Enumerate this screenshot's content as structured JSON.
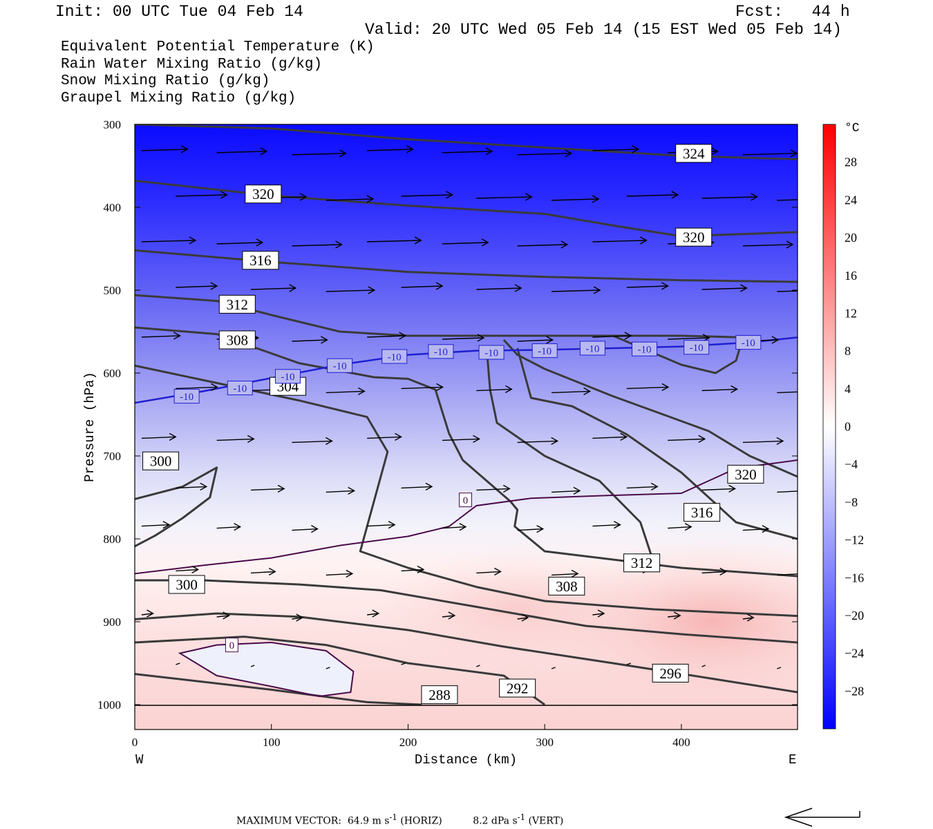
{
  "header": {
    "init": "Init: 00 UTC Tue 04 Feb 14",
    "fcst_label": "Fcst:",
    "fcst_value": "44 h",
    "valid": "Valid: 20 UTC Wed 05 Feb 14 (15 EST Wed 05 Feb 14)"
  },
  "legend": [
    {
      "text": "Equivalent Potential Temperature (K)",
      "color": "#555555"
    },
    {
      "text": "Rain Water Mixing Ratio (g/kg)",
      "color": "#006400"
    },
    {
      "text": "Snow Mixing Ratio (g/kg)",
      "color": "#f4a460"
    },
    {
      "text": "Graupel Mixing Ratio (g/kg)",
      "color": "#ee82ee"
    }
  ],
  "footer": {
    "label": "MAXIMUM VECTOR:",
    "horiz": "64.9 m s",
    "horiz_exp": "-1",
    "horiz_tag": "(HORIZ)",
    "vert": "8.2 dPa s",
    "vert_exp": "-1",
    "vert_tag": "(VERT)"
  },
  "chart_data": {
    "type": "heatmap",
    "xlabel": "Distance (km)",
    "ylabel": "Pressure (hPa)",
    "xlim": [
      0,
      485
    ],
    "ylim": [
      1030,
      300
    ],
    "y_log_scale": false,
    "x_ticks": [
      0,
      100,
      200,
      300,
      400
    ],
    "y_ticks": [
      300,
      400,
      500,
      600,
      700,
      800,
      900,
      1000
    ],
    "x_endpoints": [
      "W",
      "E"
    ],
    "colorbar": {
      "unit": "°C",
      "labels": [
        28,
        24,
        20,
        16,
        12,
        8,
        4,
        0,
        -4,
        -8,
        -12,
        -16,
        -20,
        -24,
        -28
      ],
      "range": [
        -32,
        32
      ]
    },
    "temperature_isotherms": [
      {
        "value": -10,
        "color": "#1f1fd0",
        "points": [
          [
            0,
            636
          ],
          [
            50,
            622
          ],
          [
            100,
            606
          ],
          [
            150,
            590
          ],
          [
            200,
            578
          ],
          [
            250,
            573
          ],
          [
            300,
            572
          ],
          [
            350,
            570
          ],
          [
            400,
            568
          ],
          [
            450,
            563
          ],
          [
            485,
            557
          ]
        ],
        "labels": "-10"
      },
      {
        "value": 0,
        "color": "#4a0a4a",
        "points": [
          [
            0,
            842
          ],
          [
            50,
            832
          ],
          [
            100,
            823
          ],
          [
            150,
            808
          ],
          [
            200,
            797
          ],
          [
            230,
            785
          ],
          [
            250,
            760
          ],
          [
            290,
            751
          ],
          [
            340,
            748
          ],
          [
            400,
            745
          ],
          [
            440,
            715
          ],
          [
            485,
            705
          ]
        ],
        "labels": "0"
      },
      {
        "value": 0,
        "color": "#4a0a4a",
        "closed": true,
        "points": [
          [
            33,
            938
          ],
          [
            60,
            928
          ],
          [
            100,
            925
          ],
          [
            140,
            935
          ],
          [
            160,
            960
          ],
          [
            158,
            985
          ],
          [
            135,
            990
          ],
          [
            100,
            978
          ],
          [
            60,
            965
          ],
          [
            33,
            938
          ]
        ],
        "labels": "0"
      }
    ],
    "theta_e_contours": [
      {
        "value": 324,
        "points": [
          [
            0,
            300
          ],
          [
            100,
            305
          ],
          [
            200,
            318
          ],
          [
            300,
            328
          ],
          [
            400,
            338
          ],
          [
            485,
            342
          ]
        ]
      },
      {
        "value": 320,
        "points": [
          [
            0,
            368
          ],
          [
            100,
            386
          ],
          [
            200,
            398
          ],
          [
            300,
            408
          ],
          [
            350,
            422
          ],
          [
            400,
            435
          ],
          [
            485,
            430
          ]
        ]
      },
      {
        "value": 316,
        "points": [
          [
            0,
            452
          ],
          [
            100,
            466
          ],
          [
            200,
            478
          ],
          [
            300,
            484
          ],
          [
            400,
            488
          ],
          [
            485,
            490
          ]
        ]
      },
      {
        "value": 312,
        "points": [
          [
            0,
            506
          ],
          [
            60,
            513
          ],
          [
            100,
            530
          ],
          [
            150,
            550
          ],
          [
            200,
            555
          ],
          [
            300,
            555
          ],
          [
            400,
            555
          ],
          [
            445,
            557
          ],
          [
            440,
            585
          ],
          [
            425,
            600
          ],
          [
            400,
            590
          ],
          [
            350,
            555
          ],
          [
            340,
            555
          ]
        ]
      },
      {
        "value": 308,
        "points": [
          [
            0,
            545
          ],
          [
            60,
            553
          ],
          [
            120,
            588
          ],
          [
            175,
            605
          ],
          [
            200,
            607
          ],
          [
            220,
            620
          ],
          [
            230,
            673
          ],
          [
            240,
            705
          ],
          [
            275,
            755
          ],
          [
            280,
            765
          ],
          [
            278,
            785
          ],
          [
            300,
            815
          ],
          [
            350,
            825
          ],
          [
            400,
            835
          ],
          [
            485,
            845
          ]
        ]
      },
      {
        "value": 304,
        "points": [
          [
            0,
            591
          ],
          [
            60,
            612
          ],
          [
            120,
            633
          ],
          [
            170,
            653
          ],
          [
            185,
            695
          ],
          [
            165,
            815
          ],
          [
            200,
            835
          ],
          [
            250,
            858
          ],
          [
            300,
            875
          ],
          [
            380,
            885
          ],
          [
            485,
            893
          ]
        ]
      },
      {
        "value": 300,
        "points": [
          [
            0,
            752
          ],
          [
            35,
            737
          ],
          [
            60,
            714
          ],
          [
            55,
            750
          ],
          [
            35,
            775
          ],
          [
            15,
            796
          ],
          [
            0,
            809
          ]
        ]
      },
      {
        "value": 300,
        "points": [
          [
            0,
            850
          ],
          [
            50,
            850
          ],
          [
            120,
            855
          ],
          [
            180,
            862
          ],
          [
            250,
            882
          ],
          [
            330,
            905
          ],
          [
            400,
            915
          ],
          [
            485,
            925
          ]
        ]
      },
      {
        "value": 296,
        "points": [
          [
            0,
            897
          ],
          [
            60,
            890
          ],
          [
            120,
            894
          ],
          [
            200,
            910
          ],
          [
            270,
            930
          ],
          [
            350,
            950
          ],
          [
            420,
            968
          ],
          [
            485,
            985
          ]
        ]
      },
      {
        "value": 292,
        "points": [
          [
            0,
            925
          ],
          [
            80,
            918
          ],
          [
            140,
            928
          ],
          [
            200,
            950
          ],
          [
            270,
            965
          ],
          [
            300,
            1000
          ]
        ]
      },
      {
        "value": 288,
        "points": [
          [
            0,
            963
          ],
          [
            100,
            982
          ],
          [
            170,
            997
          ],
          [
            210,
            1000
          ]
        ]
      },
      {
        "value": 320,
        "points": [
          [
            485,
            725
          ],
          [
            450,
            700
          ],
          [
            420,
            670
          ],
          [
            390,
            652
          ],
          [
            350,
            628
          ],
          [
            300,
            595
          ],
          [
            280,
            578
          ],
          [
            270,
            560
          ]
        ]
      },
      {
        "value": 316,
        "points": [
          [
            485,
            800
          ],
          [
            440,
            780
          ],
          [
            400,
            720
          ],
          [
            360,
            674
          ],
          [
            320,
            640
          ],
          [
            290,
            630
          ],
          [
            280,
            570
          ]
        ]
      },
      {
        "value": 312,
        "points": [
          [
            380,
            830
          ],
          [
            370,
            780
          ],
          [
            340,
            730
          ],
          [
            300,
            700
          ],
          [
            265,
            660
          ],
          [
            260,
            620
          ],
          [
            258,
            580
          ]
        ]
      }
    ],
    "contour_labels": [
      {
        "text": "324",
        "x": 409,
        "y": 335
      },
      {
        "text": "320",
        "x": 94,
        "y": 384
      },
      {
        "text": "320",
        "x": 409,
        "y": 436
      },
      {
        "text": "316",
        "x": 92,
        "y": 464
      },
      {
        "text": "312",
        "x": 75,
        "y": 517
      },
      {
        "text": "308",
        "x": 75,
        "y": 560
      },
      {
        "text": "304",
        "x": 112,
        "y": 616
      },
      {
        "text": "300",
        "x": 19,
        "y": 706
      },
      {
        "text": "320",
        "x": 447,
        "y": 722
      },
      {
        "text": "316",
        "x": 415,
        "y": 768
      },
      {
        "text": "312",
        "x": 371,
        "y": 829
      },
      {
        "text": "308",
        "x": 316,
        "y": 857
      },
      {
        "text": "300",
        "x": 38,
        "y": 855
      },
      {
        "text": "296",
        "x": 392,
        "y": 962
      },
      {
        "text": "292",
        "x": 280,
        "y": 980
      },
      {
        "text": "288",
        "x": 223,
        "y": 988
      },
      {
        "text": "-10",
        "x": 38,
        "y": 628
      },
      {
        "text": "-10",
        "x": 77,
        "y": 618
      },
      {
        "text": "-10",
        "x": 112,
        "y": 604
      },
      {
        "text": "-10",
        "x": 150,
        "y": 591
      },
      {
        "text": "-10",
        "x": 190,
        "y": 580
      },
      {
        "text": "-10",
        "x": 224,
        "y": 574
      },
      {
        "text": "-10",
        "x": 261,
        "y": 575
      },
      {
        "text": "-10",
        "x": 300,
        "y": 573
      },
      {
        "text": "-10",
        "x": 335,
        "y": 570
      },
      {
        "text": "-10",
        "x": 373,
        "y": 571
      },
      {
        "text": "-10",
        "x": 411,
        "y": 569
      },
      {
        "text": "-10",
        "x": 449,
        "y": 563
      },
      {
        "text": "0",
        "x": 242,
        "y": 753
      },
      {
        "text": "0",
        "x": 71,
        "y": 928
      }
    ]
  }
}
